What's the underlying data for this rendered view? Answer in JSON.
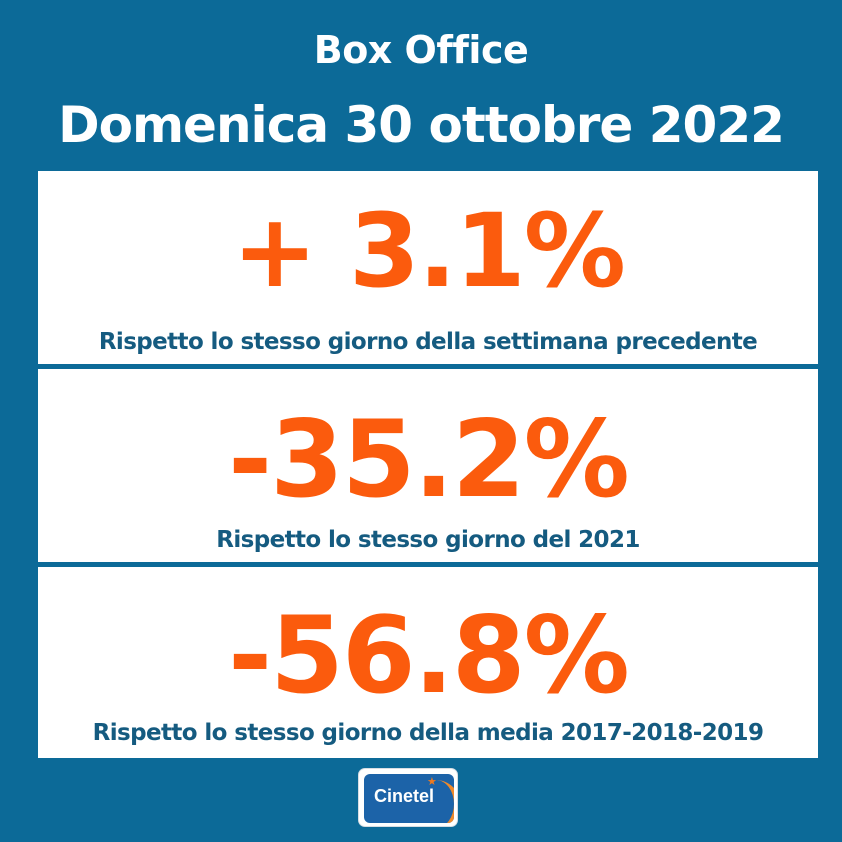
{
  "header": {
    "title": "Box Office",
    "date": "Domenica 30 ottobre 2022"
  },
  "stats": [
    {
      "value": "+ 3.1%",
      "caption": "Rispetto lo stesso giorno della settimana precedente"
    },
    {
      "value": "-35.2%",
      "caption": "Rispetto lo stesso giorno del 2021"
    },
    {
      "value": "-56.8%",
      "caption": "Rispetto lo stesso giorno della media 2017-2018-2019"
    }
  ],
  "logo": {
    "text": "Cinetel",
    "icon": "star-icon"
  },
  "colors": {
    "background": "#0c6a98",
    "panel": "#ffffff",
    "value": "#fb5b0d",
    "caption": "#155b80",
    "title": "#ffffff"
  }
}
